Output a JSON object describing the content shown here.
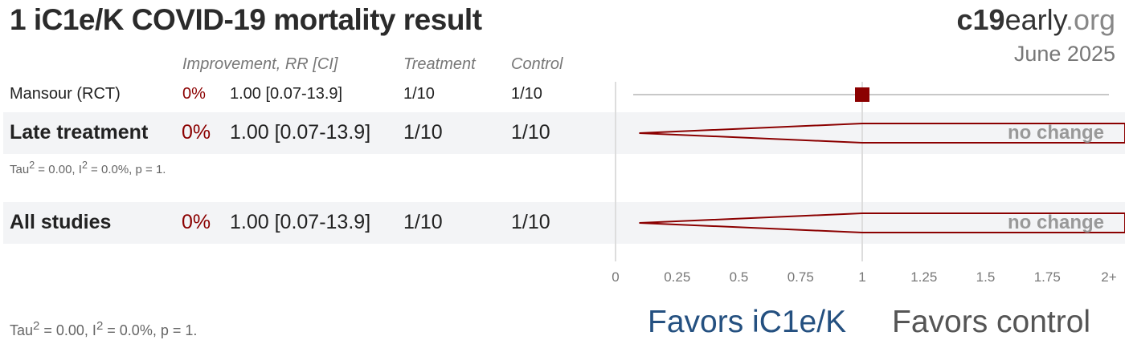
{
  "title": "1 iC1e/K COVID-19 mortality result",
  "brand": {
    "part1": "c19",
    "part2": "early",
    "part3": ".org"
  },
  "date": "June 2025",
  "headers": {
    "improvement": "Improvement, RR [CI]",
    "treatment": "Treatment",
    "control": "Control"
  },
  "rows": [
    {
      "label": "Mansour (RCT)",
      "improvement": "0%",
      "rr_ci": "1.00 [0.07-13.9]",
      "treatment": "1/10",
      "control": "1/10"
    }
  ],
  "groups": [
    {
      "label": "Late treatment",
      "improvement": "0%",
      "rr_ci": "1.00 [0.07-13.9]",
      "treatment": "1/10",
      "control": "1/10",
      "effect": "no change",
      "stats": {
        "tau_prefix": "Tau",
        "tau_rest": " = 0.00, I",
        "i_rest": " = 0.0%, p = 1.",
        "sup": "2"
      }
    },
    {
      "label": "All studies",
      "improvement": "0%",
      "rr_ci": "1.00 [0.07-13.9]",
      "treatment": "1/10",
      "control": "1/10",
      "effect": "no change"
    }
  ],
  "footer_stats": {
    "tau_prefix": "Tau",
    "tau_rest": " = 0.00, I",
    "i_rest": " = 0.0%, p = 1.",
    "sup": "2"
  },
  "axis": {
    "ticks": [
      "0",
      "0.25",
      "0.5",
      "0.75",
      "1",
      "1.25",
      "1.5",
      "1.75",
      "2+"
    ]
  },
  "favors": {
    "left": "Favors iC1e/K",
    "right": "Favors control"
  },
  "colors": {
    "marker": "#8b0000",
    "favors_left": "#245080",
    "favors_right": "#555555"
  },
  "chart_data": {
    "type": "forest",
    "xlim": [
      0,
      2
    ],
    "ticks": [
      0,
      0.25,
      0.5,
      0.75,
      1,
      1.25,
      1.5,
      1.75,
      2
    ],
    "studies": [
      {
        "label": "Mansour (RCT)",
        "rr": 1.0,
        "ci": [
          0.07,
          13.9
        ]
      }
    ],
    "pooled": [
      {
        "label": "Late treatment",
        "rr": 1.0,
        "ci": [
          0.07,
          13.9
        ]
      },
      {
        "label": "All studies",
        "rr": 1.0,
        "ci": [
          0.07,
          13.9
        ]
      }
    ]
  }
}
